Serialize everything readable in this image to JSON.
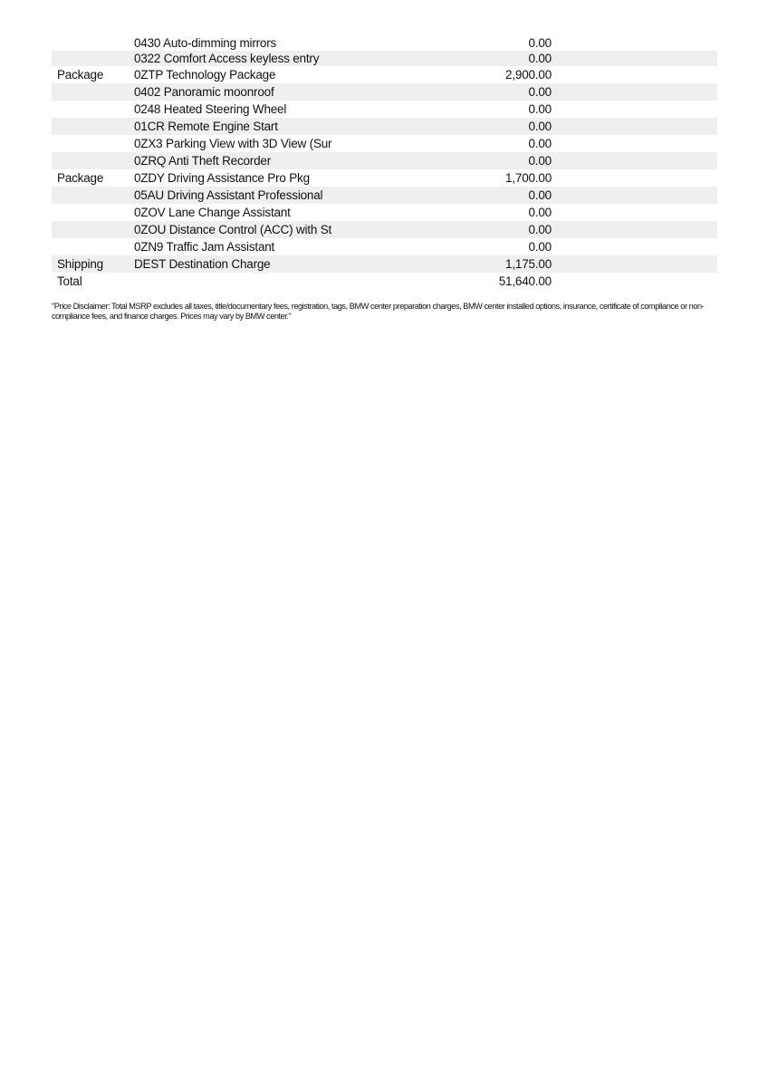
{
  "rows": [
    {
      "category": "",
      "description": "0430 Auto-dimming mirrors",
      "price": "0.00"
    },
    {
      "category": "",
      "description": "0322 Comfort Access keyless entry",
      "price": "0.00"
    },
    {
      "category": "Package",
      "description": "0ZTP Technology Package",
      "price": "2,900.00"
    },
    {
      "category": "",
      "description": "0402 Panoramic moonroof",
      "price": "0.00"
    },
    {
      "category": "",
      "description": "0248 Heated Steering Wheel",
      "price": "0.00"
    },
    {
      "category": "",
      "description": "01CR Remote Engine Start",
      "price": "0.00"
    },
    {
      "category": "",
      "description": "0ZX3 Parking View with 3D View (Sur",
      "price": "0.00"
    },
    {
      "category": "",
      "description": "0ZRQ Anti Theft Recorder",
      "price": "0.00"
    },
    {
      "category": "Package",
      "description": "0ZDY Driving Assistance Pro Pkg",
      "price": "1,700.00"
    },
    {
      "category": "",
      "description": "05AU Driving Assistant Professional",
      "price": "0.00"
    },
    {
      "category": "",
      "description": "0ZOV Lane Change Assistant",
      "price": "0.00"
    },
    {
      "category": "",
      "description": "0ZOU Distance Control (ACC) with St",
      "price": "0.00"
    },
    {
      "category": "",
      "description": "0ZN9 Traffic Jam Assistant",
      "price": "0.00"
    },
    {
      "category": "Shipping",
      "description": "DEST Destination Charge",
      "price": "1,175.00"
    }
  ],
  "total": {
    "label": "Total",
    "price": "51,640.00"
  },
  "disclaimer": "\"Price Disclaimer: Total MSRP excludes all taxes, title/documentary fees, registration, tags, BMW center preparation charges, BMW center installed options, insurance, certificate of compliance or non-compliance fees, and finance charges. Prices may vary by BMW center.\""
}
